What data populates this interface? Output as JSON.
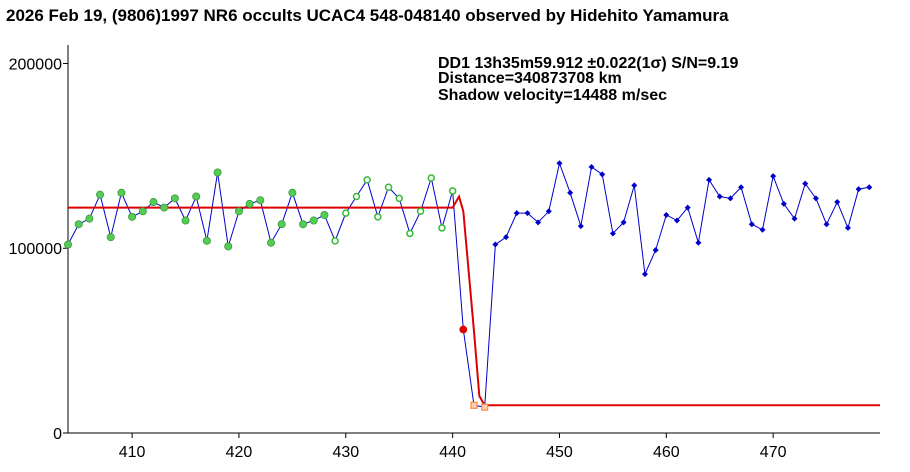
{
  "chart_data": {
    "type": "line",
    "title": "2026 Feb 19, (9806)1997 NR6 occults UCAC4 548-048140 observed by Hidehito Yamamura",
    "annotations": [
      "D​D1 13h35m59.912 ±0.022(1σ) S/N=9.19",
      "Distance=340873708 km",
      "Shadow velocity=14488 m/sec"
    ],
    "xlim": [
      404,
      480
    ],
    "ylim": [
      0,
      210000
    ],
    "x_ticks": [
      410,
      420,
      430,
      440,
      450,
      460,
      470
    ],
    "y_ticks": [
      0,
      100000,
      200000
    ],
    "x_tick_labels": [
      "410",
      "420",
      "430",
      "440",
      "450",
      "460",
      "470"
    ],
    "y_tick_labels": [
      "0",
      "100000",
      "200000"
    ],
    "grid": false,
    "colors": {
      "observation_line": "#0000cc",
      "baseline_points": "#55cc55",
      "baseline_open_points": "#33bb33",
      "occultation_points": "#ff8844",
      "post_event_points": "#0000cc",
      "model": "#dd0000"
    },
    "series": [
      {
        "role": "observed",
        "x": [
          404,
          405,
          406,
          407,
          408,
          409,
          410,
          411,
          412,
          413,
          414,
          415,
          416,
          417,
          418,
          419,
          420,
          421,
          422,
          423,
          424,
          425,
          426,
          427,
          428,
          429,
          430,
          431,
          432,
          433,
          434,
          435,
          436,
          437,
          438,
          439,
          440,
          441,
          442,
          443,
          444,
          445,
          446,
          447,
          448,
          449,
          450,
          451,
          452,
          453,
          454,
          455,
          456,
          457,
          458,
          459,
          460,
          461,
          462,
          463,
          464,
          465,
          466,
          467,
          468,
          469,
          470,
          471,
          472,
          473,
          474,
          475,
          476,
          477,
          478,
          479
        ],
        "y": [
          102000,
          113000,
          116000,
          129000,
          106000,
          130000,
          117000,
          120000,
          125000,
          122000,
          127000,
          115000,
          128000,
          104000,
          141000,
          101000,
          120000,
          124000,
          126000,
          103000,
          113000,
          130000,
          113000,
          115000,
          118000,
          104000,
          119000,
          128000,
          137000,
          117000,
          133000,
          127000,
          108000,
          120000,
          138000,
          111000,
          131000,
          56000,
          15000,
          14000,
          102000,
          106000,
          119000,
          119000,
          114000,
          120000,
          146000,
          130000,
          112000,
          144000,
          140000,
          108000,
          114000,
          134000,
          86000,
          99000,
          118000,
          115000,
          122000,
          103000,
          137000,
          128000,
          127000,
          133000,
          113000,
          110000,
          139000,
          124000,
          116000,
          135000,
          127000,
          113000,
          125000,
          111000,
          132000,
          133000
        ]
      },
      {
        "role": "model",
        "x": [
          404,
          440,
          440.6,
          441,
          442,
          442.5,
          443,
          480
        ],
        "y": [
          122000,
          122000,
          128000,
          120000,
          55000,
          20000,
          15000,
          15000
        ]
      }
    ],
    "markers": {
      "baseline_filled_x": [
        404,
        405,
        406,
        407,
        408,
        409,
        410,
        411,
        412,
        413,
        414,
        415,
        416,
        417,
        418,
        419,
        420,
        421,
        422,
        423,
        424,
        425,
        426,
        427,
        428
      ],
      "baseline_open_x": [
        429,
        430,
        431,
        432,
        433,
        434,
        435,
        436,
        437,
        438,
        439,
        440
      ],
      "event_x": [
        441
      ],
      "occulted_x": [
        442,
        443
      ],
      "post_event_x": [
        444,
        445,
        446,
        447,
        448,
        449,
        450,
        451,
        452,
        453,
        454,
        455,
        456,
        457,
        458,
        459,
        460,
        461,
        462,
        463,
        464,
        465,
        466,
        467,
        468,
        469,
        470,
        471,
        472,
        473,
        474,
        475,
        476,
        477,
        478,
        479
      ]
    }
  }
}
